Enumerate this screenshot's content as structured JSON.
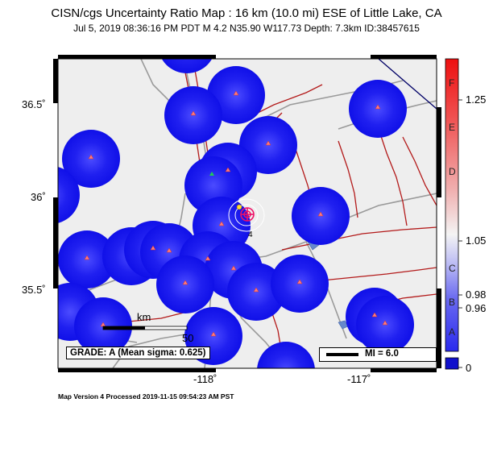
{
  "header": {
    "title": "CISN/cgs Uncertainty Ratio Map : 16 km (10.0 mi) ESE of Little Lake, CA",
    "subtitle": "Jul  5, 2019 08:36:16 PM PDT   M 4.2   N35.90 W117.73   Depth: 7.3km   ID:38457615"
  },
  "map": {
    "lat_ticks": [
      "36.5˚",
      "36˚",
      "35.5˚"
    ],
    "lon_ticks": [
      "-118˚",
      "-117˚"
    ],
    "contour_label": "4",
    "scale_bar": {
      "unit": "km",
      "end_value": "50"
    },
    "grade_text": "GRADE: A (Mean sigma: 0.625)",
    "mi_legend": "MI = 6.0",
    "colors": {
      "station_halo": "#1414ee",
      "fault": "#b31a1a",
      "road": "#999999",
      "land": "#eeeeee",
      "water": "#6688cc"
    }
  },
  "colorbar": {
    "letters": [
      "F",
      "E",
      "D",
      "C",
      "B",
      "A"
    ],
    "values": [
      "1.25",
      "1.05",
      "0.98",
      "0.96",
      "0"
    ]
  },
  "footer": "Map Version 4 Processed 2019-11-15 09:54:23 AM PST"
}
